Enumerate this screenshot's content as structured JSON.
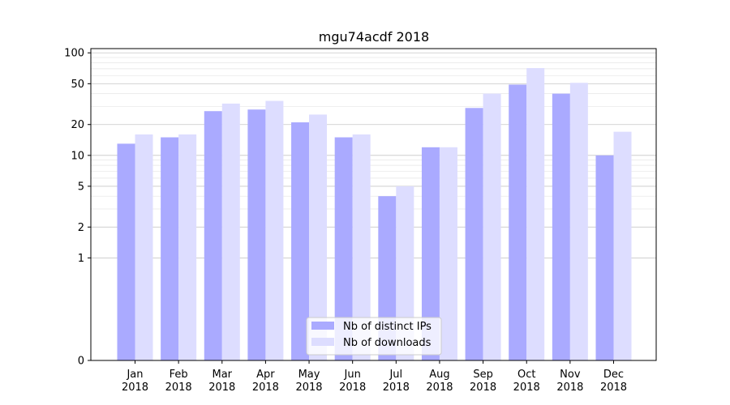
{
  "chart_data": {
    "type": "bar",
    "title": "mgu74acdf 2018",
    "xlabel": "",
    "ylabel": "",
    "yscale": "symlog",
    "ylim": [
      0,
      110
    ],
    "yticks": [
      0,
      1,
      2,
      5,
      10,
      20,
      50,
      100
    ],
    "ytick_labels": [
      "0",
      "1",
      "2",
      "5",
      "10",
      "20",
      "50",
      "100"
    ],
    "categories": [
      "Jan\n2018",
      "Feb\n2018",
      "Mar\n2018",
      "Apr\n2018",
      "May\n2018",
      "Jun\n2018",
      "Jul\n2018",
      "Aug\n2018",
      "Sep\n2018",
      "Oct\n2018",
      "Nov\n2018",
      "Dec\n2018"
    ],
    "series": [
      {
        "name": "Nb of distinct IPs",
        "color": "#aaaaff",
        "values": [
          13,
          15,
          27,
          28,
          21,
          15,
          4,
          12,
          29,
          49,
          40,
          10
        ]
      },
      {
        "name": "Nb of downloads",
        "color": "#ddddff",
        "values": [
          16,
          16,
          32,
          34,
          25,
          16,
          5,
          12,
          40,
          71,
          51,
          17
        ]
      }
    ],
    "grid": true,
    "legend_position": "lower center"
  }
}
